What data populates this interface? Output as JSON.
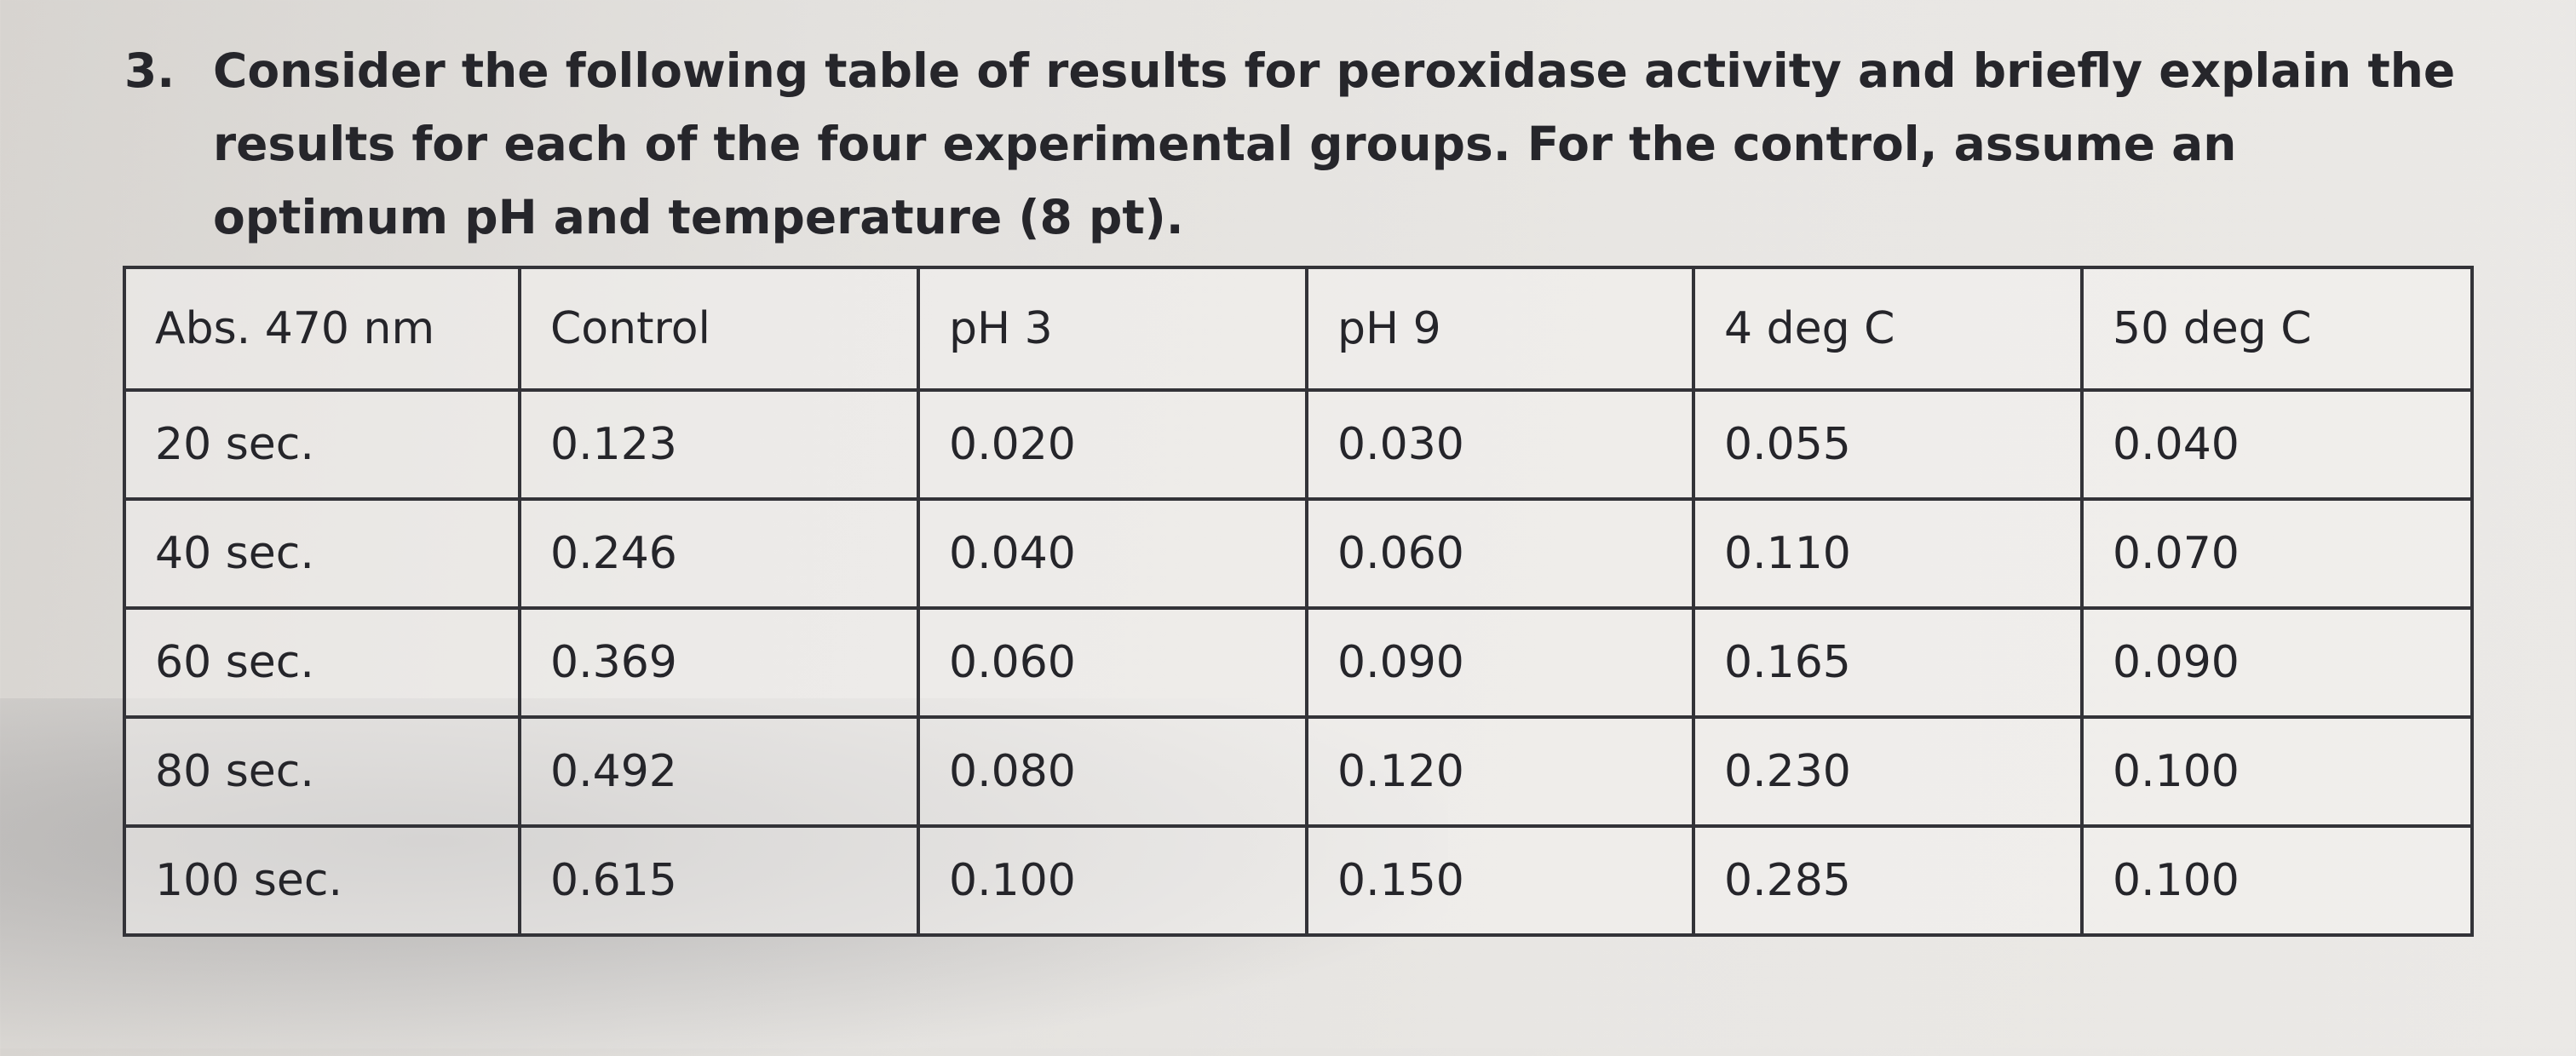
{
  "question": {
    "number": "3.",
    "text": "Consider the following table of results for peroxidase activity and briefly explain the results for each of the four experimental groups. For the control, assume an optimum pH and temperature (8 pt)."
  },
  "table": {
    "headers": [
      "Abs. 470 nm",
      "Control",
      "pH 3",
      "pH 9",
      "4 deg C",
      "50 deg C"
    ],
    "rows": [
      [
        "20 sec.",
        "0.123",
        "0.020",
        "0.030",
        "0.055",
        "0.040"
      ],
      [
        "40 sec.",
        "0.246",
        "0.040",
        "0.060",
        "0.110",
        "0.070"
      ],
      [
        "60 sec.",
        "0.369",
        "0.060",
        "0.090",
        "0.165",
        "0.090"
      ],
      [
        "80 sec.",
        "0.492",
        "0.080",
        "0.120",
        "0.230",
        "0.100"
      ],
      [
        "100 sec.",
        "0.615",
        "0.100",
        "0.150",
        "0.285",
        "0.100"
      ]
    ]
  }
}
